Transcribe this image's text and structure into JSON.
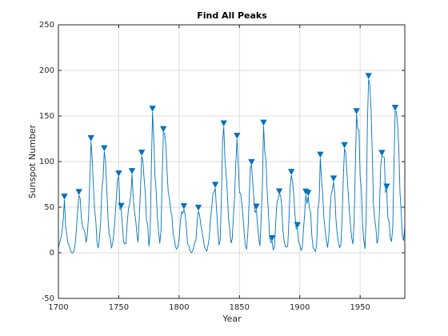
{
  "chart_data": {
    "type": "line",
    "title": "Find All Peaks",
    "xlabel": "Year",
    "ylabel": "Sunspot Number",
    "xlim": [
      1700,
      1987
    ],
    "ylim": [
      -50,
      250
    ],
    "xticks": [
      1700,
      1750,
      1800,
      1850,
      1900,
      1950
    ],
    "yticks": [
      -50,
      0,
      50,
      100,
      150,
      200,
      250
    ],
    "grid": true,
    "series": [
      {
        "color": "#0072bd",
        "marker": "none",
        "x": [
          1700,
          1701,
          1702,
          1703,
          1704,
          1705,
          1706,
          1707,
          1708,
          1709,
          1710,
          1711,
          1712,
          1713,
          1714,
          1715,
          1716,
          1717,
          1718,
          1719,
          1720,
          1721,
          1722,
          1723,
          1724,
          1725,
          1726,
          1727,
          1728,
          1729,
          1730,
          1731,
          1732,
          1733,
          1734,
          1735,
          1736,
          1737,
          1738,
          1739,
          1740,
          1741,
          1742,
          1743,
          1744,
          1745,
          1746,
          1747,
          1748,
          1749,
          1750,
          1751,
          1752,
          1753,
          1754,
          1755,
          1756,
          1757,
          1758,
          1759,
          1760,
          1761,
          1762,
          1763,
          1764,
          1765,
          1766,
          1767,
          1768,
          1769,
          1770,
          1771,
          1772,
          1773,
          1774,
          1775,
          1776,
          1777,
          1778,
          1779,
          1780,
          1781,
          1782,
          1783,
          1784,
          1785,
          1786,
          1787,
          1788,
          1789,
          1790,
          1791,
          1792,
          1793,
          1794,
          1795,
          1796,
          1797,
          1798,
          1799,
          1800,
          1801,
          1802,
          1803,
          1804,
          1805,
          1806,
          1807,
          1808,
          1809,
          1810,
          1811,
          1812,
          1813,
          1814,
          1815,
          1816,
          1817,
          1818,
          1819,
          1820,
          1821,
          1822,
          1823,
          1824,
          1825,
          1826,
          1827,
          1828,
          1829,
          1830,
          1831,
          1832,
          1833,
          1834,
          1835,
          1836,
          1837,
          1838,
          1839,
          1840,
          1841,
          1842,
          1843,
          1844,
          1845,
          1846,
          1847,
          1848,
          1849,
          1850,
          1851,
          1852,
          1853,
          1854,
          1855,
          1856,
          1857,
          1858,
          1859,
          1860,
          1861,
          1862,
          1863,
          1864,
          1865,
          1866,
          1867,
          1868,
          1869,
          1870,
          1871,
          1872,
          1873,
          1874,
          1875,
          1876,
          1877,
          1878,
          1879,
          1880,
          1881,
          1882,
          1883,
          1884,
          1885,
          1886,
          1887,
          1888,
          1889,
          1890,
          1891,
          1892,
          1893,
          1894,
          1895,
          1896,
          1897,
          1898,
          1899,
          1900,
          1901,
          1902,
          1903,
          1904,
          1905,
          1906,
          1907,
          1908,
          1909,
          1910,
          1911,
          1912,
          1913,
          1914,
          1915,
          1916,
          1917,
          1918,
          1919,
          1920,
          1921,
          1922,
          1923,
          1924,
          1925,
          1926,
          1927,
          1928,
          1929,
          1930,
          1931,
          1932,
          1933,
          1934,
          1935,
          1936,
          1937,
          1938,
          1939,
          1940,
          1941,
          1942,
          1943,
          1944,
          1945,
          1946,
          1947,
          1948,
          1949,
          1950,
          1951,
          1952,
          1953,
          1954,
          1955,
          1956,
          1957,
          1958,
          1959,
          1960,
          1961,
          1962,
          1963,
          1964,
          1965,
          1966,
          1967,
          1968,
          1969,
          1970,
          1971,
          1972,
          1973,
          1974,
          1975,
          1976,
          1977,
          1978,
          1979,
          1980,
          1981,
          1982,
          1983,
          1984,
          1985,
          1986,
          1987
        ],
        "values": [
          5,
          11,
          16,
          23,
          36,
          58,
          29,
          20,
          10,
          8,
          3,
          0,
          0,
          2,
          11,
          27,
          47,
          63,
          60,
          39,
          28,
          26,
          22,
          11,
          21,
          40,
          78,
          122,
          103,
          73,
          47,
          35,
          11,
          5,
          16,
          34,
          70,
          81,
          111,
          101,
          73,
          40,
          20,
          16,
          5,
          11,
          22,
          40,
          60,
          80.9,
          83.4,
          47.7,
          47.8,
          30.7,
          12.2,
          9.6,
          10.2,
          32.4,
          47.6,
          54,
          62.9,
          85.9,
          61.2,
          45.1,
          36.4,
          20.9,
          11.4,
          37.8,
          69.8,
          106.1,
          100.8,
          81.6,
          66.5,
          34.8,
          30.6,
          7,
          19.8,
          92.5,
          154.4,
          125.9,
          84.8,
          68.1,
          38.5,
          22.8,
          10.2,
          24.1,
          82.9,
          132,
          130.9,
          118.1,
          89.9,
          66.6,
          60,
          46.9,
          41,
          21.3,
          16,
          6.4,
          4.1,
          6.8,
          14.5,
          34,
          45,
          43.1,
          47.5,
          42.2,
          28.1,
          10.1,
          8.1,
          2.5,
          0,
          1.4,
          5,
          12.2,
          13.9,
          35.4,
          45.8,
          41.1,
          30.1,
          23.9,
          15.6,
          6.6,
          4,
          1.8,
          8.5,
          16.6,
          36.3,
          49.6,
          64.2,
          67,
          70.9,
          47.8,
          27.5,
          8.5,
          13.2,
          56.9,
          121.5,
          138.3,
          103.2,
          85.7,
          64.6,
          36.7,
          24.2,
          10.7,
          15,
          40.1,
          61.5,
          98.5,
          124.7,
          96.3,
          66.6,
          64.5,
          54.1,
          39,
          20.6,
          6.7,
          4.3,
          22.7,
          54.8,
          93.8,
          95.8,
          77.2,
          59.1,
          44,
          47,
          30.5,
          16.3,
          7.3,
          37.6,
          74,
          139,
          111.2,
          101.6,
          66.2,
          44.7,
          17,
          11.3,
          12.4,
          3.4,
          6,
          32.3,
          54.3,
          59.7,
          63.7,
          63.5,
          52.2,
          25.4,
          13.1,
          6.8,
          6.3,
          7.1,
          35.6,
          73,
          85.1,
          78,
          64,
          41.8,
          26.2,
          26.7,
          12.1,
          9.5,
          2.7,
          5,
          24.4,
          42,
          63.5,
          53.8,
          62,
          48.5,
          43.9,
          18.6,
          5.7,
          3.6,
          1.4,
          9.6,
          47.4,
          57.1,
          103.9,
          80.6,
          63.6,
          37.6,
          26.1,
          14.2,
          5.8,
          16.7,
          44.3,
          63.9,
          69,
          77.8,
          64.9,
          35.7,
          21.2,
          11.1,
          5.7,
          8.7,
          36.1,
          79.7,
          114.4,
          109.6,
          88.8,
          67.8,
          47.5,
          30.6,
          16.3,
          9.6,
          33.2,
          92.6,
          151.6,
          136.3,
          134.7,
          83.9,
          69.4,
          31.5,
          13.9,
          4.4,
          38,
          141.7,
          190.2,
          184.8,
          159,
          112.3,
          53.9,
          37.5,
          27.9,
          10.2,
          15.1,
          47,
          93.8,
          105.9,
          105.5,
          104.5,
          66.6,
          68.9,
          38,
          34.5,
          15.5,
          12.6,
          27.5,
          92.5,
          155.4,
          154.6,
          140.5,
          115.9,
          66.6,
          45.9,
          17.9,
          13.4,
          29.2
        ]
      },
      {
        "color": "#0072bd",
        "marker": "triangle-down",
        "x": [
          1705,
          1717,
          1727,
          1738,
          1750,
          1752,
          1761,
          1769,
          1778,
          1787,
          1804,
          1816,
          1830,
          1837,
          1848,
          1860,
          1864,
          1870,
          1877,
          1883,
          1893,
          1898,
          1905,
          1907,
          1917,
          1928,
          1937,
          1947,
          1957,
          1968,
          1972,
          1979
        ],
        "values": [
          58,
          63,
          122,
          111,
          83.4,
          47.8,
          85.9,
          106.1,
          154.4,
          132,
          47.5,
          45.8,
          70.9,
          138.3,
          124.7,
          95.8,
          47,
          139,
          12.4,
          63.7,
          85.1,
          26.7,
          63.5,
          62,
          103.9,
          77.8,
          114.4,
          151.6,
          190.2,
          105.9,
          68.9,
          155.4
        ]
      }
    ]
  }
}
